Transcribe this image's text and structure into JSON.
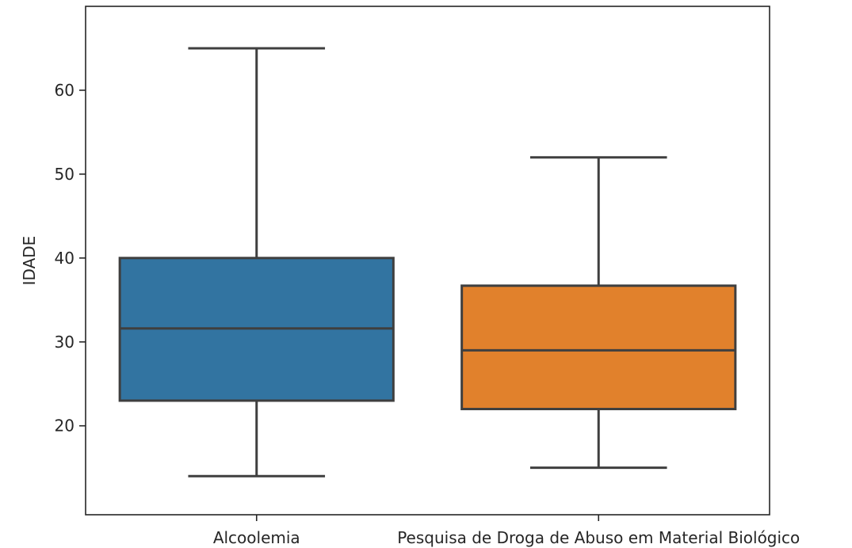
{
  "chart_data": {
    "type": "box",
    "title": "",
    "xlabel": "",
    "ylabel": "IDADE",
    "ylim": [
      9.4,
      70
    ],
    "y_ticks": [
      20,
      30,
      40,
      50,
      60
    ],
    "grid": false,
    "categories": [
      "Alcoolemia",
      "Pesquisa de Droga de Abuso em Material Biológico"
    ],
    "series": [
      {
        "category": "Alcoolemia",
        "whisker_low": 14,
        "q1": 23,
        "median": 31.6,
        "q3": 40,
        "whisker_high": 65,
        "color": "#3274a1"
      },
      {
        "category": "Pesquisa de Droga de Abuso em Material Biológico",
        "whisker_low": 15,
        "q1": 22,
        "median": 29,
        "q3": 36.7,
        "whisker_high": 52,
        "color": "#e1812c"
      }
    ],
    "line_color": "#3f3f3f"
  }
}
